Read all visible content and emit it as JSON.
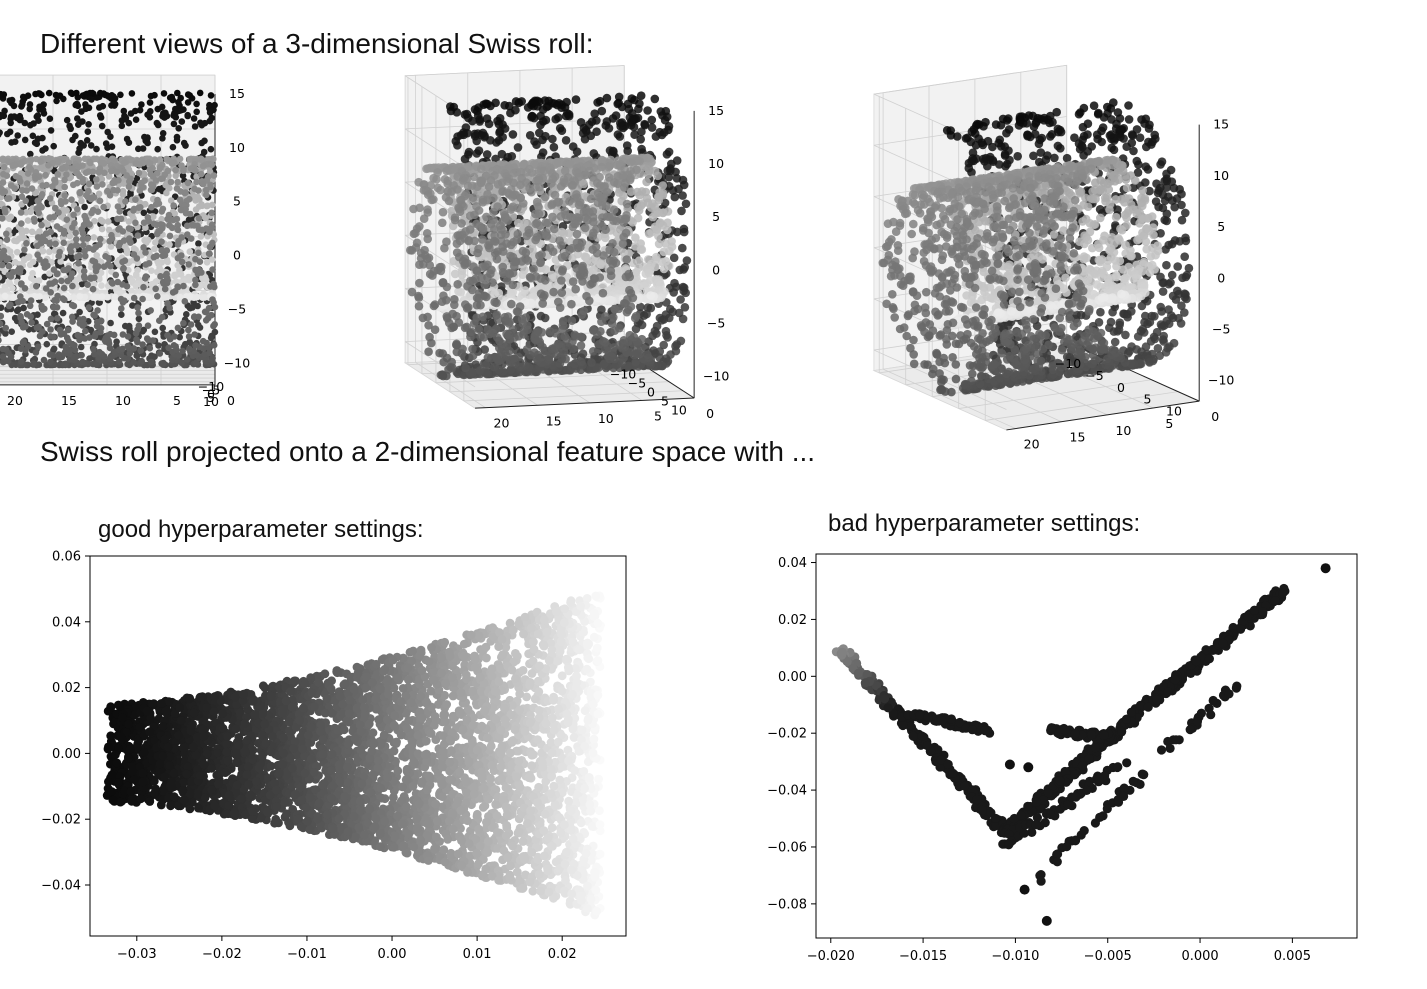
{
  "headings": {
    "top": "Different views of a 3-dimensional Swiss roll:",
    "bottom": "Swiss roll projected onto a 2-dimensional feature space with ..."
  },
  "chart_data": [
    {
      "type": "scatter",
      "panel": "3d-view-1",
      "title": "",
      "x_ticks": [
        "−10",
        "−5",
        "0",
        "5",
        "10"
      ],
      "y_ticks": [
        "0",
        "5",
        "10",
        "15",
        "20"
      ],
      "z_ticks": [
        "−10",
        "−5",
        "0",
        "5",
        "10",
        "15"
      ],
      "xlim": [
        -11,
        14
      ],
      "ylim": [
        0,
        21
      ],
      "zlim": [
        -12,
        15
      ],
      "t_range": [
        4.7,
        14.1
      ],
      "colormap": "grayscale: light (inner) to black (outer)"
    },
    {
      "type": "scatter",
      "panel": "3d-view-2",
      "title": "",
      "x_ticks": [
        "−10",
        "−5",
        "0",
        "5",
        "10"
      ],
      "y_ticks": [
        "0",
        "5",
        "10",
        "15",
        "20"
      ],
      "z_ticks": [
        "−10",
        "−5",
        "0",
        "5",
        "10",
        "15"
      ],
      "xlim": [
        -11,
        14
      ],
      "ylim": [
        0,
        21
      ],
      "zlim": [
        -12,
        15
      ],
      "t_range": [
        4.7,
        14.1
      ],
      "colormap": "grayscale: light (inner) to black (outer)"
    },
    {
      "type": "scatter",
      "panel": "3d-view-3",
      "title": "",
      "x_ticks": [
        "−10",
        "−5",
        "0",
        "5",
        "10"
      ],
      "y_ticks": [
        "0",
        "5",
        "10",
        "15",
        "20"
      ],
      "z_ticks": [
        "−10",
        "−5",
        "0",
        "5",
        "10",
        "15"
      ],
      "xlim": [
        -11,
        14
      ],
      "ylim": [
        0,
        21
      ],
      "zlim": [
        -12,
        15
      ],
      "t_range": [
        4.7,
        14.1
      ],
      "colormap": "grayscale: light (inner) to black (outer)"
    },
    {
      "type": "scatter",
      "panel": "good",
      "title": "good hyperparameter settings:",
      "xlabel": "",
      "ylabel": "",
      "xlim": [
        -0.0355,
        0.0275
      ],
      "ylim": [
        -0.0555,
        0.06
      ],
      "x_ticks": [
        -0.03,
        -0.02,
        -0.01,
        0.0,
        0.01,
        0.02
      ],
      "x_tick_labels": [
        "−0.03",
        "−0.02",
        "−0.01",
        "0.00",
        "0.01",
        "0.02"
      ],
      "y_ticks": [
        -0.04,
        -0.02,
        0.0,
        0.02,
        0.04,
        0.06
      ],
      "y_tick_labels": [
        "−0.04",
        "−0.02",
        "0.00",
        "0.02",
        "0.04",
        "0.06"
      ],
      "point_cloud": {
        "x_range": [
          -0.0335,
          0.0245
        ],
        "center_y": 0.0,
        "half_width_at_left": 0.015,
        "half_width_at_right": 0.05,
        "shade": "black at left to near-white at right"
      }
    },
    {
      "type": "scatter",
      "panel": "bad",
      "title": "bad hyperparameter settings:",
      "xlabel": "",
      "ylabel": "",
      "xlim": [
        -0.0208,
        0.0085
      ],
      "ylim": [
        -0.092,
        0.043
      ],
      "x_ticks": [
        -0.02,
        -0.015,
        -0.01,
        -0.005,
        0.0,
        0.005
      ],
      "x_tick_labels": [
        "−0.020",
        "−0.015",
        "−0.010",
        "−0.005",
        "0.000",
        "0.005"
      ],
      "y_ticks": [
        -0.08,
        -0.06,
        -0.04,
        -0.02,
        0.0,
        0.02,
        0.04
      ],
      "y_tick_labels": [
        "−0.08",
        "−0.06",
        "−0.04",
        "−0.02",
        "0.00",
        "0.02",
        "0.04"
      ],
      "segments": [
        {
          "from": [
            -0.0196,
            0.01
          ],
          "to": [
            -0.0105,
            -0.055
          ]
        },
        {
          "from": [
            -0.0105,
            -0.055
          ],
          "to": [
            -0.005,
            -0.022
          ]
        },
        {
          "from": [
            -0.005,
            -0.022
          ],
          "to": [
            0.0045,
            0.03
          ]
        },
        {
          "from": [
            -0.0108,
            -0.06
          ],
          "to": [
            -0.004,
            -0.03
          ]
        },
        {
          "from": [
            -0.009,
            -0.072
          ],
          "to": [
            0.002,
            -0.002
          ]
        },
        {
          "from": [
            -0.016,
            -0.013
          ],
          "to": [
            -0.0115,
            -0.019
          ]
        },
        {
          "from": [
            -0.008,
            -0.019
          ],
          "to": [
            -0.005,
            -0.021
          ]
        }
      ],
      "outliers": [
        [
          0.0068,
          0.038
        ],
        [
          -0.0083,
          -0.086
        ],
        [
          -0.0095,
          -0.075
        ],
        [
          -0.0103,
          -0.031
        ],
        [
          -0.0093,
          -0.032
        ]
      ]
    }
  ]
}
